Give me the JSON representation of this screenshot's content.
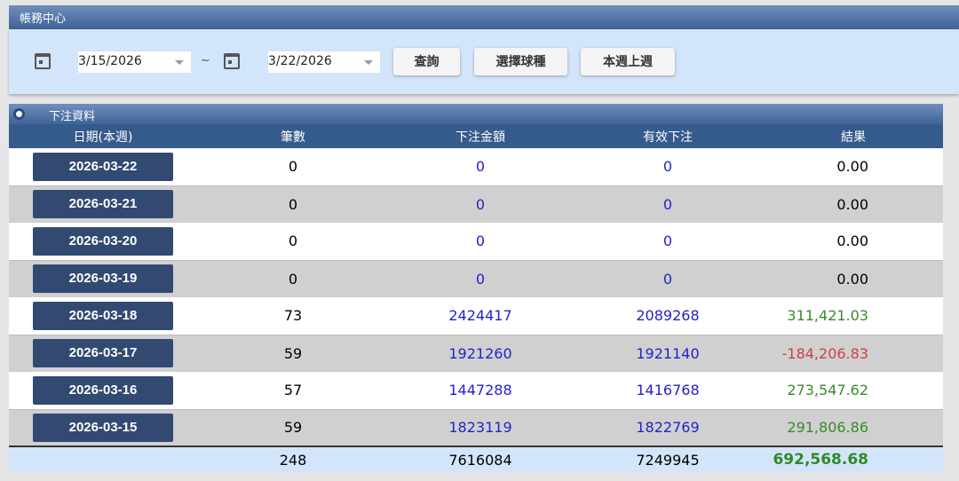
{
  "header": {
    "title": "帳務中心"
  },
  "filter": {
    "start_date": "3/15/2026",
    "separator": "~",
    "end_date": "3/22/2026",
    "query_label": "查詢",
    "select_sport_label": "選擇球種",
    "week_label": "本週上週"
  },
  "panel": {
    "title": "下注資料"
  },
  "table": {
    "columns": [
      "日期(本週)",
      "筆數",
      "下注金額",
      "有效下注",
      "結果"
    ],
    "rows": [
      {
        "date": "2026-03-22",
        "count": "0",
        "bet": "0",
        "valid": "0",
        "result": "0.00",
        "status": "zero"
      },
      {
        "date": "2026-03-21",
        "count": "0",
        "bet": "0",
        "valid": "0",
        "result": "0.00",
        "status": "zero"
      },
      {
        "date": "2026-03-20",
        "count": "0",
        "bet": "0",
        "valid": "0",
        "result": "0.00",
        "status": "zero"
      },
      {
        "date": "2026-03-19",
        "count": "0",
        "bet": "0",
        "valid": "0",
        "result": "0.00",
        "status": "zero"
      },
      {
        "date": "2026-03-18",
        "count": "73",
        "bet": "2424417",
        "valid": "2089268",
        "result": "311,421.03",
        "status": "pos"
      },
      {
        "date": "2026-03-17",
        "count": "59",
        "bet": "1921260",
        "valid": "1921140",
        "result": "-184,206.83",
        "status": "neg"
      },
      {
        "date": "2026-03-16",
        "count": "57",
        "bet": "1447288",
        "valid": "1416768",
        "result": "273,547.62",
        "status": "pos"
      },
      {
        "date": "2026-03-15",
        "count": "59",
        "bet": "1823119",
        "valid": "1822769",
        "result": "291,806.86",
        "status": "pos"
      }
    ],
    "total": {
      "count": "248",
      "bet": "7616084",
      "valid": "7249945",
      "result": "692,568.68"
    }
  },
  "colors": {
    "header": "#3e6398",
    "filter_bg": "#d3e5fa",
    "date_button": "#324a72",
    "blue": "#2222cc",
    "positive": "#3a8a2a",
    "negative": "#d04040"
  }
}
